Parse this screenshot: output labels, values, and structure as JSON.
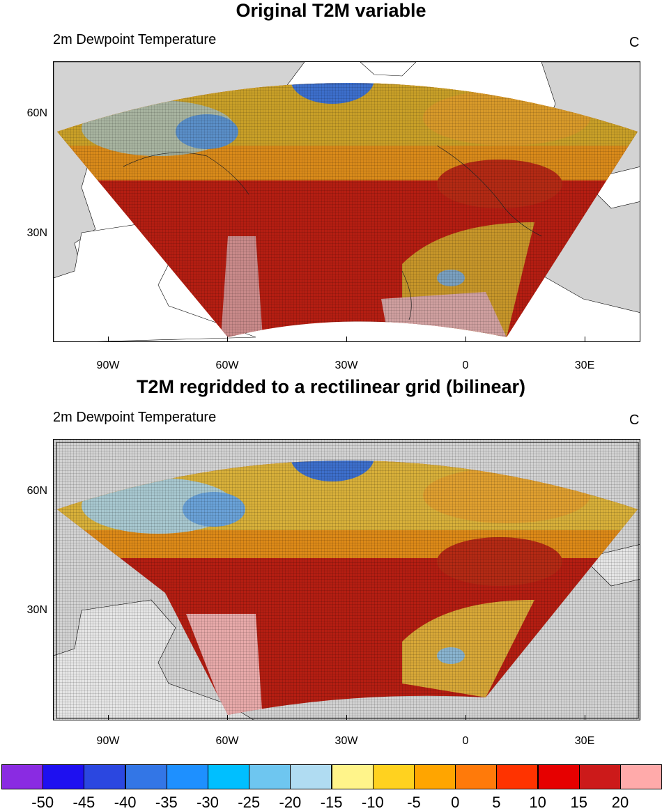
{
  "panels": [
    {
      "title": "Original T2M variable",
      "subtitle": "2m Dewpoint Temperature",
      "units": "C",
      "x_ticks": [
        "90W",
        "60W",
        "30W",
        "0",
        "30E"
      ],
      "y_ticks": [
        "60N",
        "30N"
      ]
    },
    {
      "title": "T2M regridded to a rectilinear grid (bilinear)",
      "subtitle": "2m Dewpoint Temperature",
      "units": "C",
      "x_ticks": [
        "90W",
        "60W",
        "30W",
        "0",
        "30E"
      ],
      "y_ticks": [
        "60N",
        "30N"
      ]
    }
  ],
  "colorbar": {
    "colors": [
      "#8a2be2",
      "#1e10f0",
      "#2b47e0",
      "#3376e6",
      "#1e90ff",
      "#00bfff",
      "#6ec6f0",
      "#b0dcf2",
      "#fff48a",
      "#ffd21f",
      "#ffa500",
      "#ff7a0a",
      "#ff3300",
      "#e60000",
      "#cc1a1a",
      "#ffaaaa"
    ],
    "labels": [
      "-50",
      "-45",
      "-40",
      "-35",
      "-30",
      "-25",
      "-20",
      "-15",
      "-10",
      "-5",
      "0",
      "5",
      "10",
      "15",
      "20"
    ]
  }
}
